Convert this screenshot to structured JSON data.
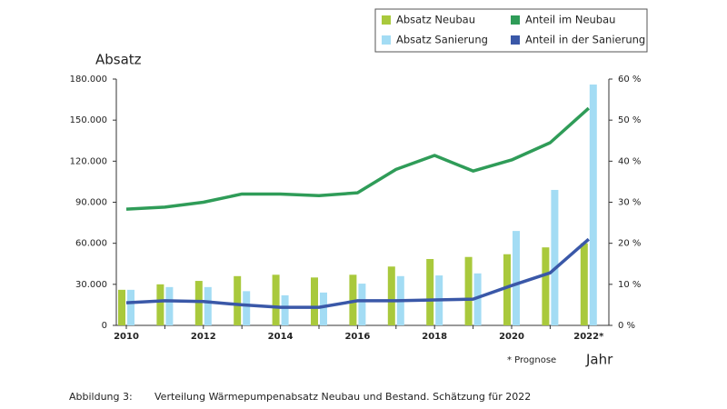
{
  "chart_data": {
    "type": "bar_line",
    "y_label": "Absatz",
    "x_label": "Jahr",
    "note": "* Prognose",
    "caption_label": "Abbildung 3:",
    "caption": "Verteilung Wärmepumpenabsatz Neubau und Bestand. Schätzung für 2022",
    "categories": [
      "2010",
      null,
      "2012",
      null,
      "2014",
      null,
      "2016",
      null,
      "2018",
      null,
      "2020",
      null,
      "2022*"
    ],
    "series": [
      {
        "name": "Absatz Neubau",
        "color": "#a9c93c",
        "kind": "bar",
        "values": [
          26000,
          30000,
          32500,
          36000,
          37000,
          35000,
          37000,
          43000,
          48500,
          50000,
          52000,
          57000,
          60000
        ]
      },
      {
        "name": "Absatz Sanierung",
        "color": "#a3dcf4",
        "kind": "bar",
        "values": [
          26000,
          28000,
          28000,
          25000,
          22000,
          24000,
          30500,
          36000,
          36500,
          38000,
          69000,
          99000,
          176000
        ]
      },
      {
        "name": "Anteil im Neubau",
        "color": "#2f9c58",
        "kind": "line",
        "axis": "y2",
        "values": [
          28.3,
          28.8,
          30,
          32,
          32,
          31.6,
          32.3,
          38,
          41.4,
          37.6,
          40.3,
          44.5,
          52.9
        ]
      },
      {
        "name": "Anteil in der Sanierung",
        "color": "#3a58a8",
        "kind": "line",
        "axis": "y2",
        "values": [
          5.5,
          6,
          5.8,
          5,
          4.4,
          4.4,
          6,
          6,
          6.2,
          6.4,
          9.7,
          12.8,
          21
        ]
      }
    ],
    "ylim": [
      0,
      180000
    ],
    "yticks": [
      0,
      {
        "value": 30000,
        "label": "30.000"
      },
      {
        "value": 60000,
        "label": "60.000"
      },
      {
        "value": 90000,
        "label": "90.000"
      },
      {
        "value": 120000,
        "label": "120.000"
      },
      {
        "value": 150000,
        "label": "150.000"
      },
      {
        "value": 180000,
        "label": "180.000"
      }
    ],
    "y2lim": [
      0,
      60
    ],
    "y2ticks": [
      {
        "value": 0,
        "label": "0 %"
      },
      {
        "value": 10,
        "label": "10 %"
      },
      {
        "value": 20,
        "label": "20 %"
      },
      {
        "value": 30,
        "label": "30 %"
      },
      {
        "value": 40,
        "label": "40 %"
      },
      {
        "value": 50,
        "label": "50 %"
      },
      {
        "value": 60,
        "label": "60 %"
      }
    ],
    "grid": false
  }
}
